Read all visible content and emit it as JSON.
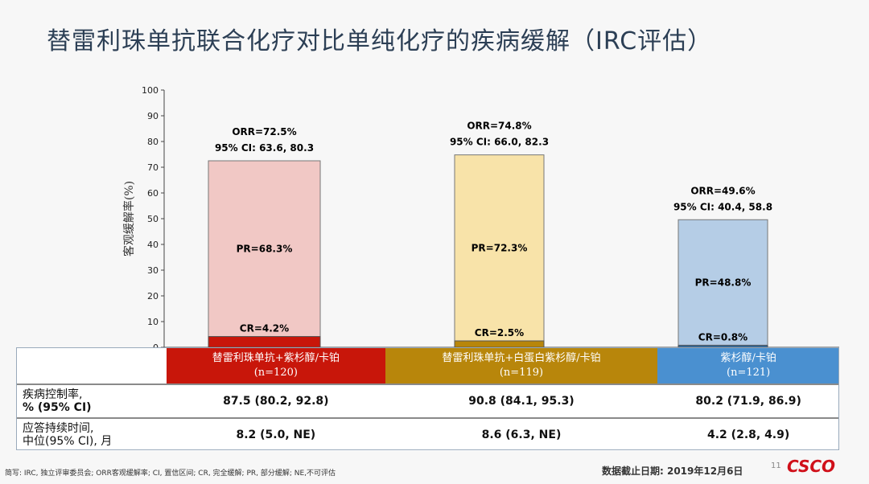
{
  "title": "替雷利珠单抗联合化疗对比单纯化疗的疾病缓解（IRC评估）",
  "chart_data": {
    "type": "bar",
    "stacked": true,
    "ylabel": "客观缓解率(%)",
    "ylim": [
      0,
      100
    ],
    "yticks": [
      0,
      10,
      20,
      30,
      40,
      50,
      60,
      70,
      80,
      90,
      100
    ],
    "categories": [
      "替雷利珠单抗+紫杉醇/卡铂",
      "替雷利珠单抗+白蛋白紫杉醇/卡铂",
      "紫杉醇/卡铂"
    ],
    "n": [
      "(n=120)",
      "(n=119)",
      "(n=121)"
    ],
    "series": [
      {
        "name": "CR",
        "values": [
          4.2,
          2.5,
          0.8
        ],
        "labels": [
          "CR=4.2%",
          "CR=2.5%",
          "CR=0.8%"
        ]
      },
      {
        "name": "PR",
        "values": [
          68.3,
          72.3,
          48.8
        ],
        "labels": [
          "PR=68.3%",
          "PR=72.3%",
          "PR=48.8%"
        ]
      }
    ],
    "orr_labels": [
      "ORR=72.5%",
      "ORR=74.8%",
      "ORR=49.6%"
    ],
    "ci_labels": [
      "95% CI: 63.6, 80.3",
      "95% CI: 66.0, 82.3",
      "95% CI: 40.4, 58.8"
    ],
    "colors": {
      "cr": [
        "#c8160a",
        "#b8860b",
        "#2f6fa8"
      ],
      "pr": [
        "#f1c8c5",
        "#f8e3a9",
        "#b5cde6"
      ],
      "header": [
        "#c8160a",
        "#b8860b",
        "#4a90d0"
      ]
    }
  },
  "table": {
    "rows": [
      {
        "label1": "疾病控制率,",
        "label2": "% (95% CI)",
        "values": [
          "87.5 (80.2, 92.8)",
          "90.8 (84.1, 95.3)",
          "80.2 (71.9, 86.9)"
        ]
      },
      {
        "label1": "应答持续时间,",
        "label2": "中位(95% CI), 月",
        "values": [
          "8.2 (5.0, NE)",
          "8.6 (6.3, NE)",
          "4.2 (2.8, 4.9)"
        ]
      }
    ]
  },
  "footnote": "简写: IRC, 独立评审委员会; ORR客观缓解率; CI, 置信区间; CR, 完全缓解; PR, 部分缓解; NE,不可评估",
  "cutoff": "数据截止日期: 2019年12月6日",
  "page": "11",
  "logo": "CSCO"
}
